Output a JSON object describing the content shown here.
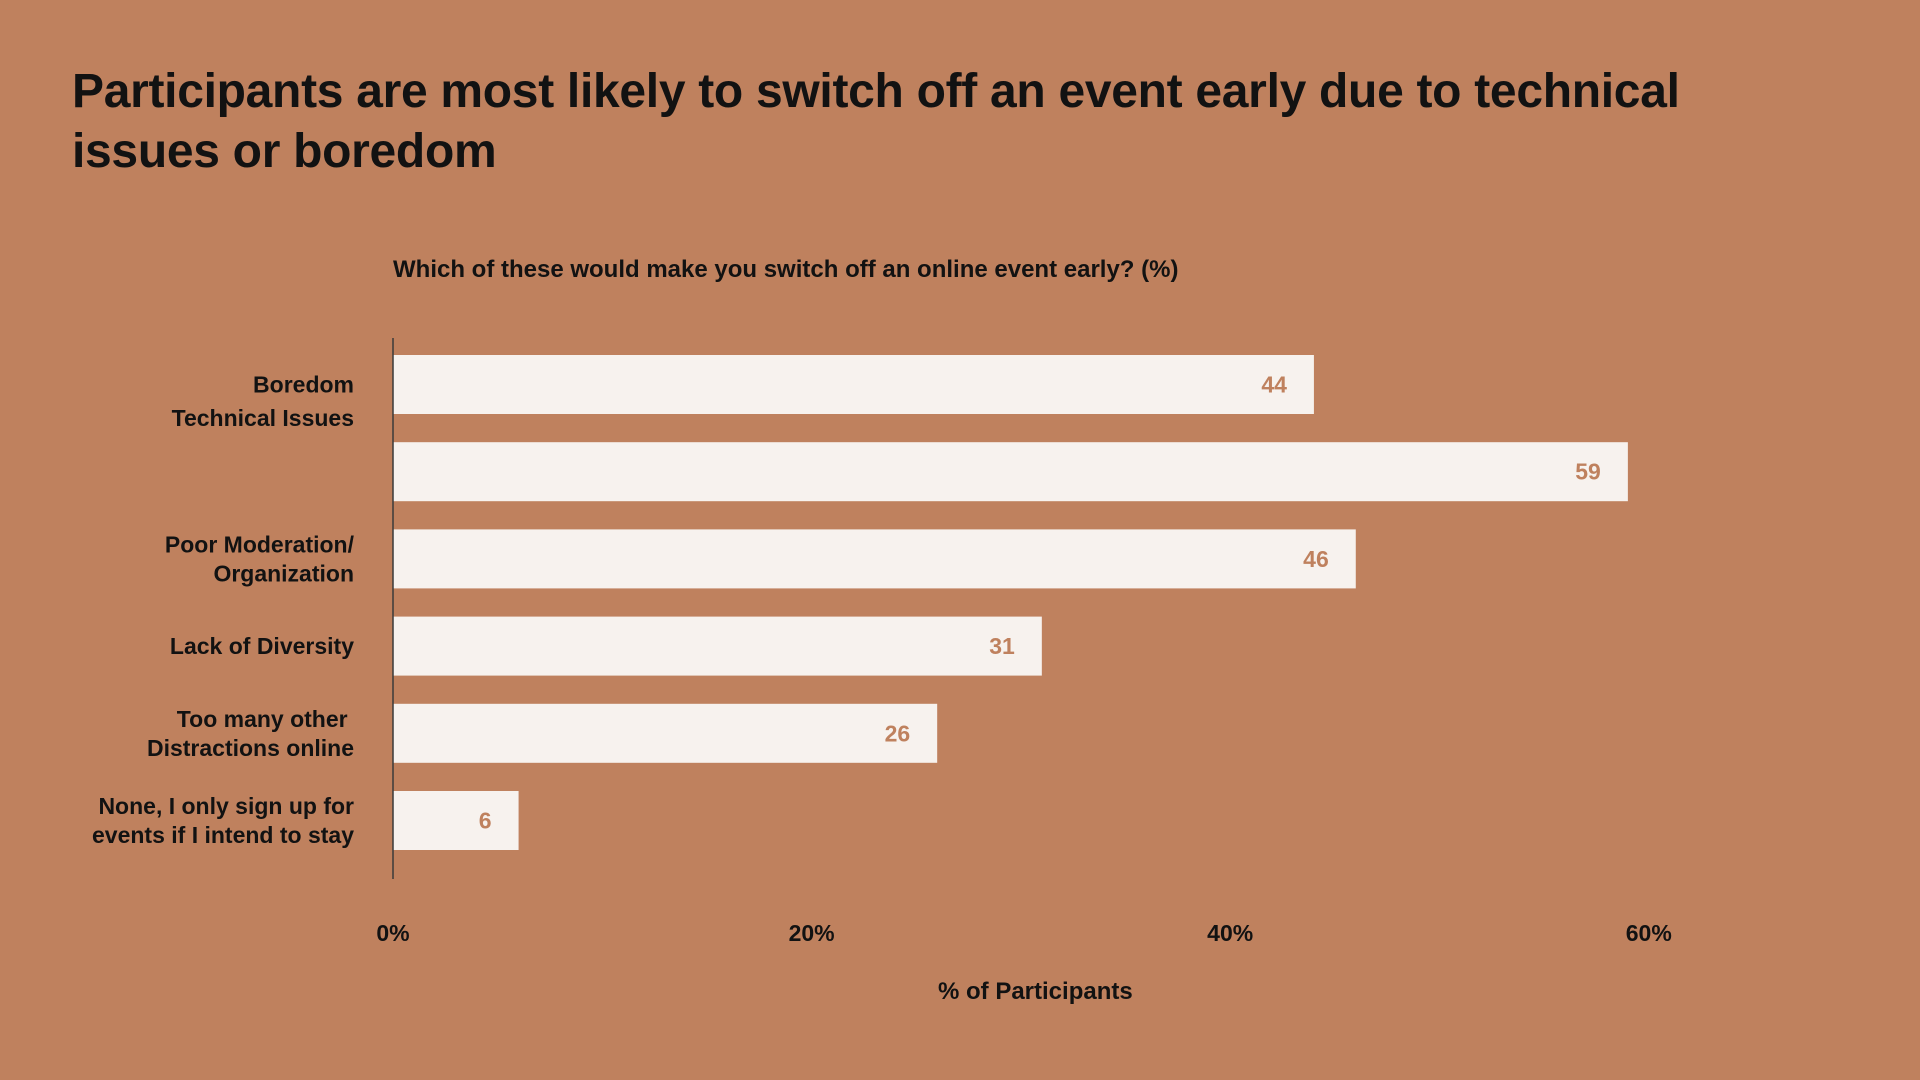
{
  "title": "Participants are most likely to switch off an event early due to technical issues or boredom",
  "colors": {
    "background": "#BF815E",
    "bar": "#F7F2EE",
    "bar_label": "#BF815E",
    "text": "#121212",
    "axis": "#3A3A3A"
  },
  "chart_data": {
    "type": "bar",
    "orientation": "horizontal",
    "title": "Which of these would make you switch off an online event early? (%)",
    "xlabel": "% of Participants",
    "ylabel": "",
    "categories": [
      [
        "Boredom"
      ],
      [
        "Technical Issues"
      ],
      [
        "Poor Moderation/",
        "Organization"
      ],
      [
        "Lack of Diversity"
      ],
      [
        "Too many other ",
        "Distractions online"
      ],
      [
        "None, I only sign up for",
        "events if I intend to stay"
      ]
    ],
    "values": [
      44,
      59,
      46,
      31,
      26,
      6
    ],
    "xlim": [
      0,
      60
    ],
    "xticks": [
      0,
      20,
      40,
      60
    ],
    "xtick_labels": [
      "0%",
      "20%",
      "40%",
      "60%"
    ],
    "data_labels": true,
    "grid": false,
    "legend": "none"
  }
}
